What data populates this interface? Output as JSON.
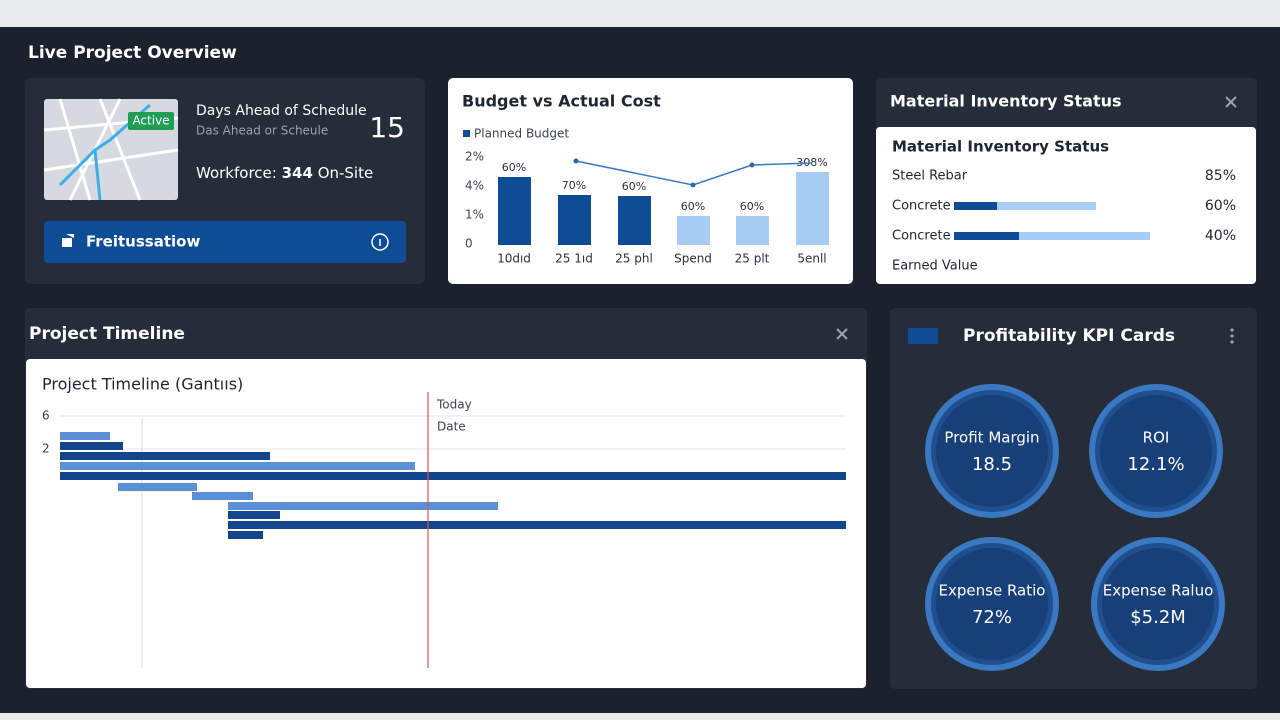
{
  "header": {
    "title": "Live Project Overview"
  },
  "site_card": {
    "badge": "Active",
    "schedule_label": "Days Ahead of Schedule",
    "schedule_sublabel": "Das Ahead or Scheule",
    "schedule_value": "15",
    "workforce_label": "Workforce:",
    "workforce_value": "344",
    "workforce_suffix": "On-Site",
    "button": "Freitussatiow"
  },
  "budget_card": {
    "title": "Budget vs Actual Cost",
    "legend": "Planned Budget",
    "axis_labels": [
      "2%",
      "4%",
      "1%",
      "0"
    ],
    "categories": [
      "10dıd",
      "25 1ıd",
      "25 phl",
      "Spend",
      "25 plt",
      "5enll"
    ],
    "bar_labels": [
      "60%",
      "70%",
      "60%",
      "60%",
      "60%",
      "308%"
    ]
  },
  "material_panel": {
    "title": "Material Inventory Status",
    "inner_title": "Material Inventory Status",
    "rows": [
      {
        "label": "Steel Rebar",
        "value": "85%"
      },
      {
        "label": "Concrete",
        "value": "60%"
      },
      {
        "label": "Concrete",
        "value": "40%"
      },
      {
        "label": "Earned Value"
      }
    ]
  },
  "timeline_panel": {
    "title": "Project Timeline",
    "inner_title": "Project Timeline (Gantııs)",
    "axis_labels": [
      "6",
      "2"
    ],
    "marker_label": "Today",
    "marker_sublabel": "Date"
  },
  "kpi_panel": {
    "title": "Profitability KPI Cards",
    "cards": [
      {
        "label": "Profit Margin",
        "value": "18.5"
      },
      {
        "label": "ROI",
        "value": "12.1%"
      },
      {
        "label": "Expense Ratio",
        "value": "72%"
      },
      {
        "label": "Expense Raluo",
        "value": "$5.2M"
      }
    ]
  }
}
